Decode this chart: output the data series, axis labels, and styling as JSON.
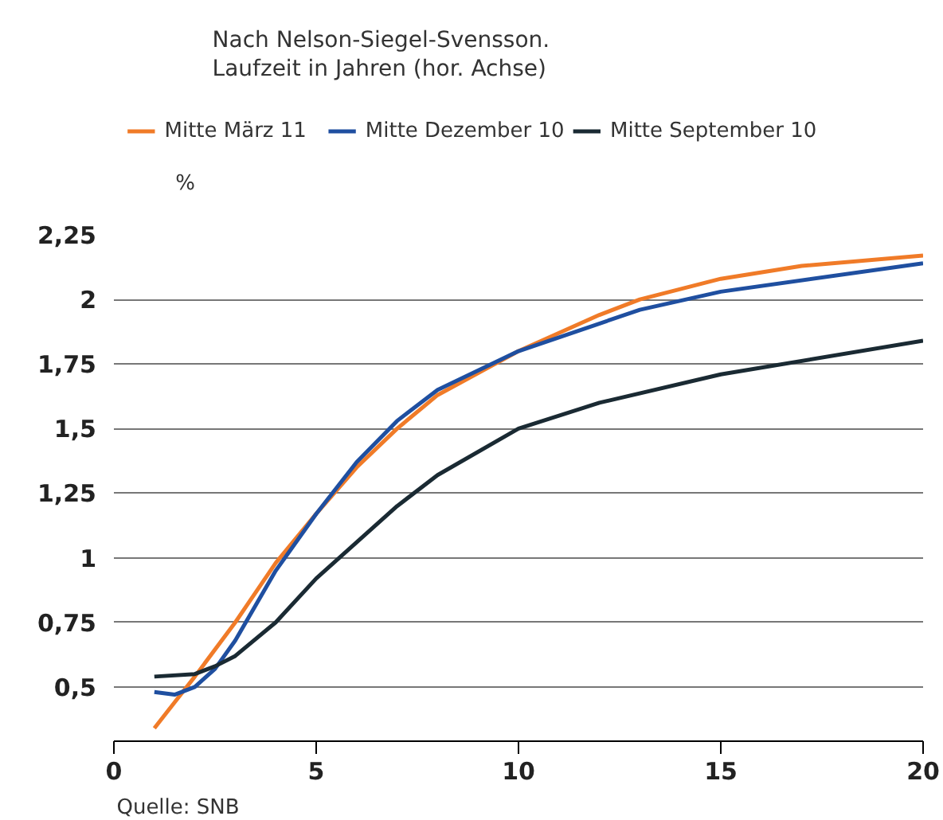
{
  "chart_data": {
    "type": "line",
    "subtitle": "Nach Nelson-Siegel-Svensson.\nLaufzeit in Jahren (hor. Achse)",
    "ylabel": "%",
    "annotations": [
      "Quelle: SNB"
    ],
    "xlim": [
      0,
      20
    ],
    "xticks": [
      0,
      5,
      10,
      15,
      20
    ],
    "ylim": [
      0.29,
      2.25
    ],
    "yticks": [
      {
        "value": 0.5,
        "label": "0,5"
      },
      {
        "value": 0.75,
        "label": "0,75"
      },
      {
        "value": 1,
        "label": "1"
      },
      {
        "value": 1.25,
        "label": "1,25"
      },
      {
        "value": 1.5,
        "label": "1,5"
      },
      {
        "value": 1.75,
        "label": "1,75"
      },
      {
        "value": 2,
        "label": "2"
      },
      {
        "value": 2.25,
        "label": "2,25"
      }
    ],
    "grid": "y",
    "legend": "top",
    "line_style": "solid",
    "marker": "none",
    "series": [
      {
        "name": "Mitte März 11",
        "color": "#f07b28",
        "x": [
          1,
          1.5,
          2,
          3,
          4,
          5,
          6,
          7,
          8,
          10,
          12,
          13,
          15,
          17,
          20
        ],
        "values": [
          0.34,
          0.44,
          0.54,
          0.75,
          0.98,
          1.17,
          1.35,
          1.5,
          1.63,
          1.8,
          1.94,
          2.0,
          2.08,
          2.13,
          2.17
        ]
      },
      {
        "name": "Mitte Dezember 10",
        "color": "#1f4fa0",
        "x": [
          1,
          1.5,
          2,
          2.5,
          3,
          4,
          5,
          6,
          7,
          8,
          10,
          13,
          15,
          20
        ],
        "values": [
          0.48,
          0.47,
          0.5,
          0.57,
          0.68,
          0.95,
          1.17,
          1.37,
          1.53,
          1.65,
          1.8,
          1.96,
          2.03,
          2.14
        ]
      },
      {
        "name": "Mitte September 10",
        "color": "#1a2a33",
        "x": [
          1,
          2,
          2.5,
          3,
          4,
          5,
          6,
          7,
          8,
          10,
          12,
          15,
          20
        ],
        "values": [
          0.54,
          0.55,
          0.58,
          0.62,
          0.75,
          0.92,
          1.06,
          1.2,
          1.32,
          1.5,
          1.6,
          1.71,
          1.84
        ]
      }
    ]
  }
}
